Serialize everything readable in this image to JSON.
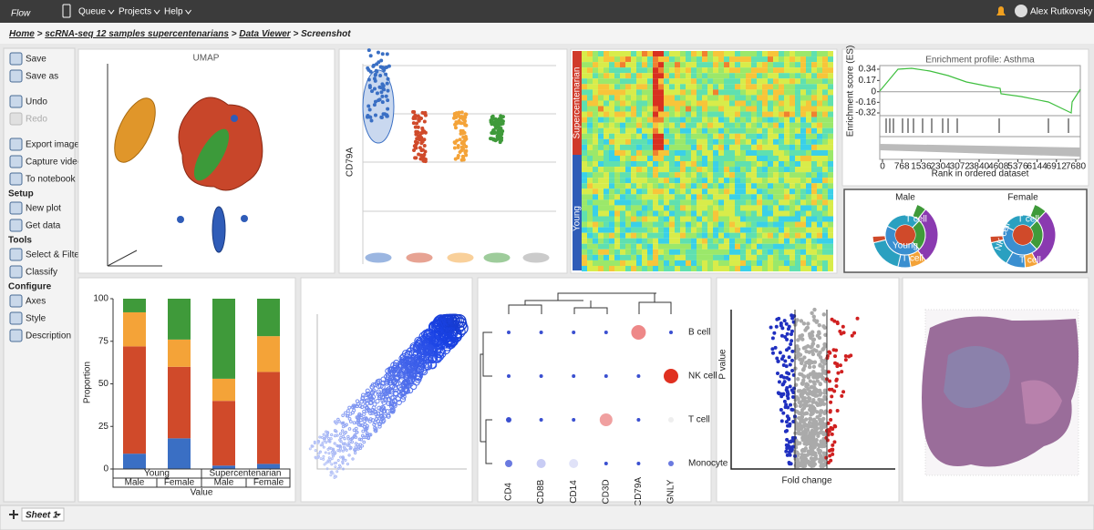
{
  "topbar": {
    "brand": "Flow",
    "menus": [
      "Queue",
      "Projects",
      "Help"
    ],
    "user": "Alex Rutkovsky"
  },
  "breadcrumb": {
    "items": [
      "Home",
      "scRNA-seq 12 samples supercentenarians",
      "Data Viewer",
      "Screenshot"
    ],
    "separator": ">"
  },
  "sidebar": {
    "groups": [
      {
        "items": [
          "Save",
          "Save as"
        ]
      },
      {
        "items": [
          "Undo",
          "Redo"
        ]
      },
      {
        "items": [
          "Export image",
          "Capture video",
          "To notebook"
        ]
      },
      {
        "heading": "Setup",
        "items": [
          "New plot",
          "Get data"
        ]
      },
      {
        "heading": "Tools",
        "items": [
          "Select & Filter",
          "Classify"
        ]
      },
      {
        "heading": "Configure",
        "items": [
          "Axes",
          "Style",
          "Description"
        ]
      }
    ]
  },
  "panels": {
    "umap": {
      "title": "UMAP"
    },
    "violin": {
      "y_label": "CD79A"
    },
    "heatmap": {
      "groups": [
        "Supercentenarian",
        "Young"
      ]
    },
    "enrichment": {
      "title": "Enrichment profile: Asthma",
      "y_label": "Enrichment score (ES)",
      "yticks": [
        0.34,
        0.17,
        0,
        -0.16,
        -0.32
      ],
      "xticks": [
        0,
        768,
        1536,
        2304,
        3072,
        3840,
        4608,
        5376,
        6144,
        6912,
        7680
      ],
      "x_label": "Rank in ordered dataset"
    },
    "pies": [
      {
        "title": "Male",
        "labels": [
          "T cell",
          "Young",
          "T cell"
        ]
      },
      {
        "title": "Female",
        "labels": [
          "T cell",
          "NK cell",
          "T cell"
        ]
      }
    ],
    "proportion": {
      "type": "bar",
      "stacked": true,
      "y_label": "Proportion",
      "x_label": "Value",
      "ylim": [
        0,
        100
      ],
      "yticks": [
        0,
        25,
        50,
        75,
        100
      ],
      "groups": [
        "Young",
        "Supercentenarian"
      ],
      "categories": [
        "Male",
        "Female",
        "Male",
        "Female"
      ],
      "series": [
        {
          "color": "#3a6fc4",
          "values": [
            9,
            18,
            2,
            3
          ]
        },
        {
          "color": "#d04a2a",
          "values": [
            63,
            42,
            38,
            54
          ]
        },
        {
          "color": "#f4a338",
          "values": [
            20,
            16,
            13,
            21
          ]
        },
        {
          "color": "#3f9a3a",
          "values": [
            8,
            24,
            47,
            22
          ]
        }
      ]
    },
    "dotplot": {
      "rows": [
        "B cell",
        "NK cell",
        "T cell",
        "Monocyte"
      ],
      "columns": [
        "CD4",
        "CD8B",
        "CD14",
        "CD3D",
        "CD79A",
        "GNLY"
      ]
    },
    "volcano": {
      "y_label": "P value",
      "x_label": "Fold change"
    }
  },
  "tabs": {
    "sheets": [
      "Sheet 1"
    ]
  }
}
